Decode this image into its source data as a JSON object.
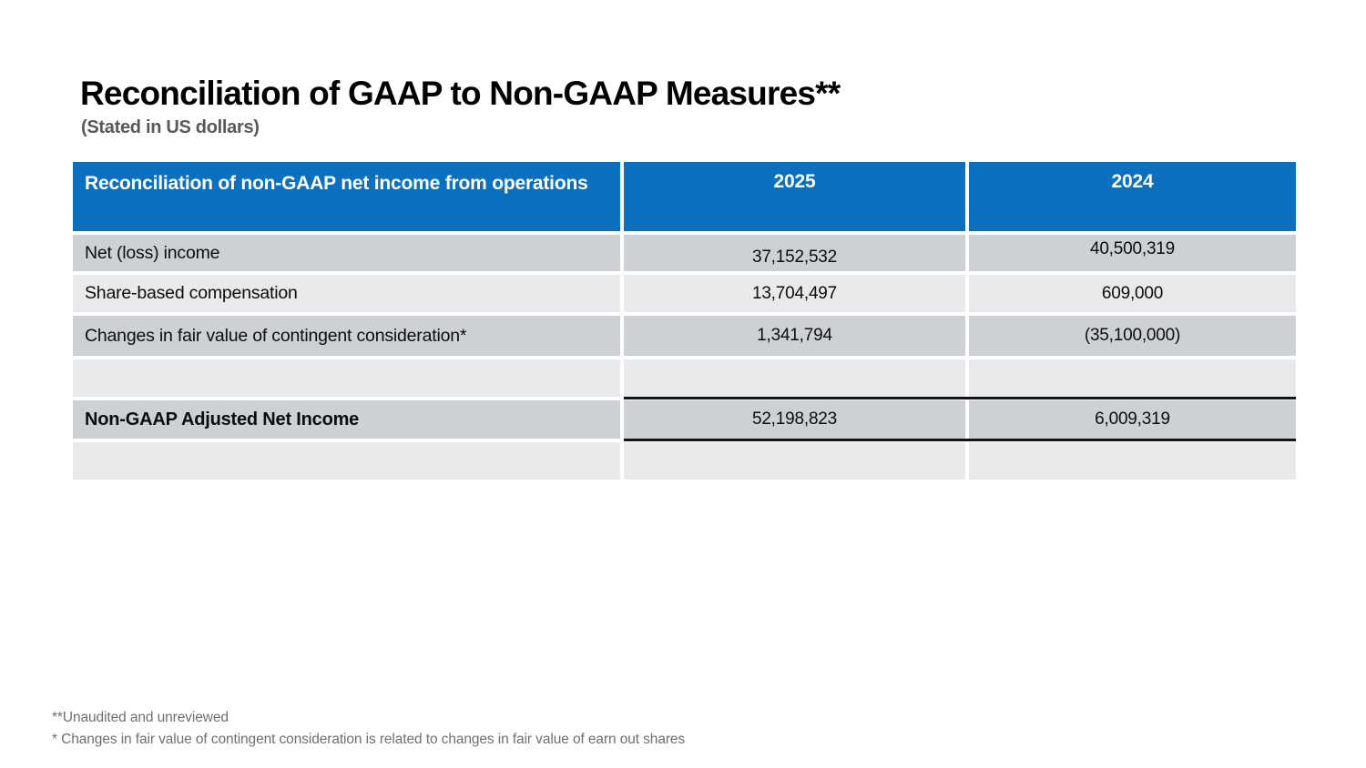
{
  "page": {
    "title": "Reconciliation of GAAP to Non-GAAP Measures**",
    "subtitle": "(Stated in US dollars)"
  },
  "table": {
    "header": {
      "label": "Reconciliation of non-GAAP net income from operations",
      "col_2025": "2025",
      "col_2024": "2024"
    },
    "rows": [
      {
        "label": "Net (loss) income",
        "y2025": "37,152,532",
        "y2024": "40,500,319"
      },
      {
        "label": "Share-based compensation",
        "y2025": "13,704,497",
        "y2024": "609,000"
      },
      {
        "label": "Changes in fair value of contingent consideration*",
        "y2025": "1,341,794",
        "y2024": "(35,100,000)"
      },
      {
        "label": "",
        "y2025": "",
        "y2024": ""
      },
      {
        "label": "Non-GAAP Adjusted Net Income",
        "y2025": "52,198,823",
        "y2024": "6,009,319"
      },
      {
        "label": "",
        "y2025": "",
        "y2024": ""
      }
    ]
  },
  "footnotes": [
    "**Unaudited and unreviewed",
    "* Changes in fair value of contingent consideration is related to changes in fair value of earn out shares"
  ],
  "colors": {
    "header_blue": "#0B70C0",
    "band_dark": "#CDD0D4",
    "band_light": "#E8EAEC",
    "rule_black": "#141414",
    "footnote_gray": "#6f6f6f"
  }
}
